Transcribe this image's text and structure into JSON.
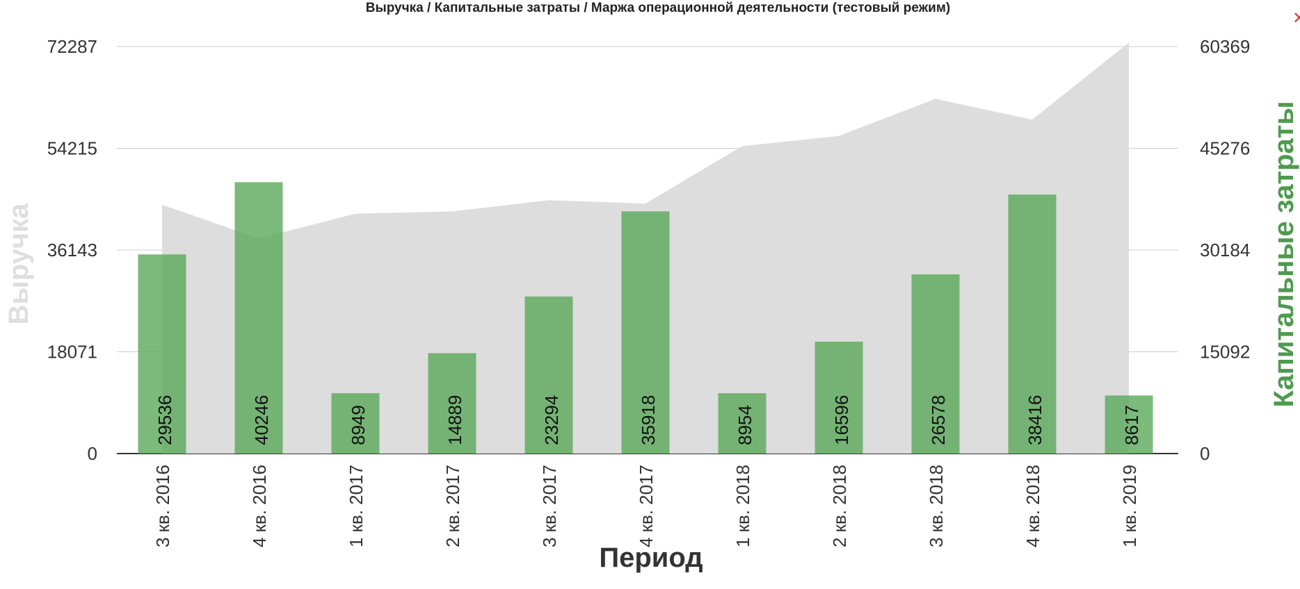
{
  "chart_data": {
    "type": "bar",
    "title": "Выручка / Капитальные затраты / Маржа операционной деятельности (тестовый режим)",
    "xlabel": "Период",
    "ylabel_left": "Выручка",
    "ylabel_right": "Капитальные затраты",
    "categories": [
      "3 кв. 2016",
      "4 кв. 2016",
      "1 кв. 2017",
      "2 кв. 2017",
      "3 кв. 2017",
      "4 кв. 2017",
      "1 кв. 2018",
      "2 кв. 2018",
      "3 кв. 2018",
      "4 кв. 2018",
      "1 кв. 2019"
    ],
    "y_left": {
      "range": [
        0,
        72287
      ],
      "ticks": [
        0,
        18071,
        36143,
        54215,
        72287
      ],
      "tick_labels": [
        "0",
        "18071",
        "36143",
        "54215",
        "72287"
      ]
    },
    "y_right": {
      "range": [
        0,
        60369
      ],
      "ticks": [
        0,
        15092,
        30184,
        45276,
        60369
      ],
      "tick_labels": [
        "0",
        "15092",
        "30184",
        "45276",
        "60369"
      ]
    },
    "series": [
      {
        "type": "area",
        "axis": "left",
        "color": "#dddddd",
        "values": [
          44200,
          38200,
          42600,
          43000,
          45000,
          44400,
          54600,
          56400,
          63000,
          59300,
          73000
        ]
      },
      {
        "type": "bar",
        "axis": "right",
        "color": "#5aa95a",
        "values": [
          29536,
          40246,
          8949,
          14889,
          23294,
          35918,
          8954,
          16596,
          26578,
          38416,
          8617
        ],
        "labels": [
          "29536",
          "40246",
          "8949",
          "14889",
          "23294",
          "35918",
          "8954",
          "16596",
          "26578",
          "38416",
          "8617"
        ]
      }
    ],
    "grid": true,
    "legend": "none"
  },
  "colors": {
    "title": "#222222",
    "left_axis_label": "#dedede",
    "right_axis_label": "#4e9a4e",
    "gridline": "#cccccc",
    "baseline": "#333333",
    "tick_text": "#333333",
    "close": "#e53935"
  },
  "close_button": {
    "label": "✕",
    "icon": "close-icon"
  }
}
